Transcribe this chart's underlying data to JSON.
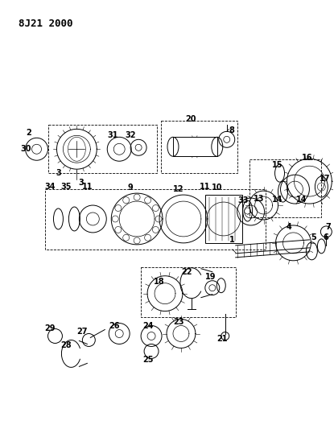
{
  "title": "8J21 2000",
  "bg_color": "#ffffff",
  "fig_width": 4.15,
  "fig_height": 5.33,
  "dpi": 100
}
